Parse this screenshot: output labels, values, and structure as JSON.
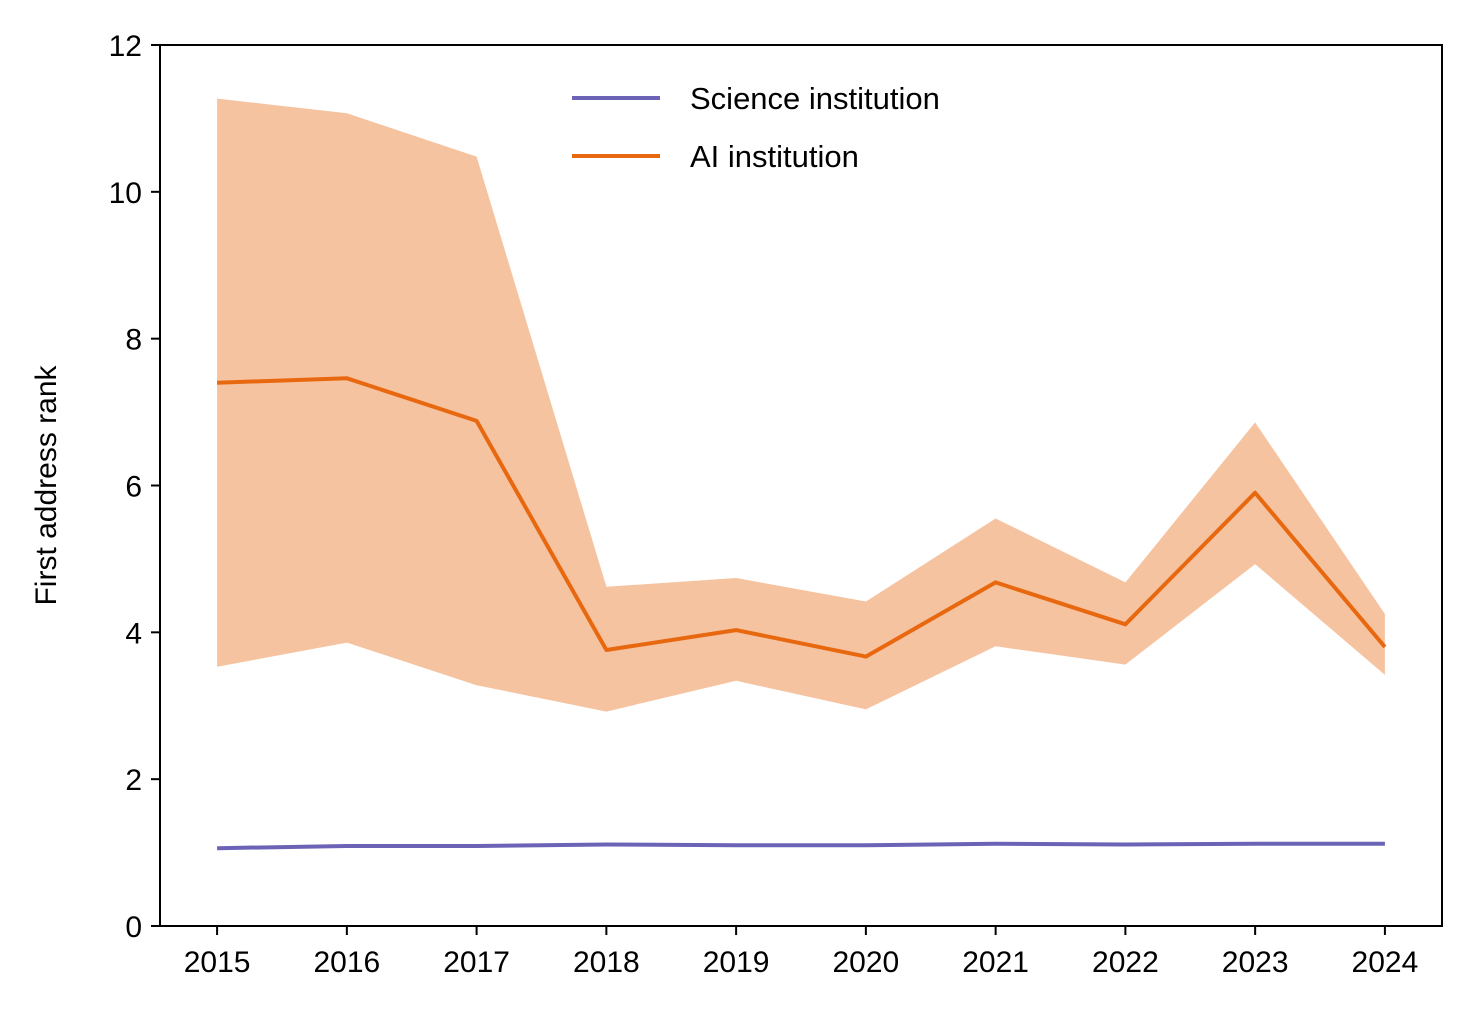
{
  "chart_data": {
    "type": "line",
    "title": "",
    "xlabel": "",
    "ylabel": "First address rank",
    "x": [
      2015,
      2016,
      2017,
      2018,
      2019,
      2020,
      2021,
      2022,
      2023,
      2024
    ],
    "x_tick_labels": [
      "2015",
      "2016",
      "2017",
      "2018",
      "2019",
      "2020",
      "2021",
      "2022",
      "2023",
      "2024"
    ],
    "y_ticks": [
      0,
      2,
      4,
      6,
      8,
      10,
      12
    ],
    "y_tick_labels": [
      "0",
      "2",
      "4",
      "6",
      "8",
      "10",
      "12"
    ],
    "xlim": [
      2014.56,
      2024.44
    ],
    "ylim": [
      0,
      12
    ],
    "grid": false,
    "legend_position": "upper center",
    "series": [
      {
        "name": "Science institution",
        "color": "#6b63b5",
        "values": [
          1.06,
          1.09,
          1.09,
          1.11,
          1.1,
          1.1,
          1.12,
          1.11,
          1.12,
          1.12
        ]
      },
      {
        "name": "AI institution",
        "color": "#e8680f",
        "band_color": "#f6c3a0",
        "values": [
          7.4,
          7.46,
          6.88,
          3.76,
          4.03,
          3.67,
          4.68,
          4.11,
          5.9,
          3.8
        ],
        "lower": [
          3.53,
          3.86,
          3.28,
          2.92,
          3.34,
          2.95,
          3.81,
          3.56,
          4.93,
          3.42
        ],
        "upper": [
          11.27,
          11.07,
          10.48,
          4.62,
          4.74,
          4.42,
          5.55,
          4.68,
          6.86,
          4.25
        ]
      }
    ]
  }
}
